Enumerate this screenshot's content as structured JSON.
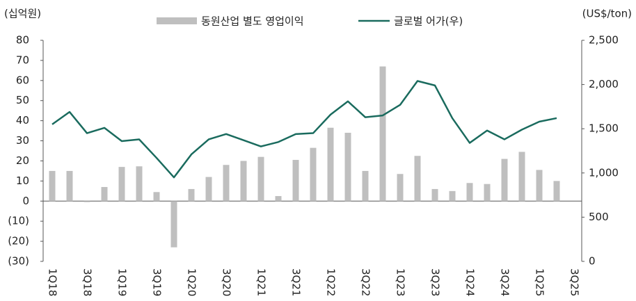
{
  "chart_data": {
    "type": "bar+line",
    "y_label": "(십억원)",
    "y2_label": "(US$/ton)",
    "categories": [
      "1Q18",
      null,
      "3Q18",
      null,
      "1Q19",
      null,
      "3Q19",
      null,
      "1Q20",
      null,
      "3Q20",
      null,
      "1Q21",
      null,
      "3Q21",
      null,
      "1Q22",
      null,
      "3Q22",
      null,
      "1Q23",
      null,
      "3Q23",
      null,
      "1Q24",
      null,
      "3Q24",
      null,
      "1Q25",
      null,
      "3Q25"
    ],
    "series": [
      {
        "name": "동원산업 별도 영업이익",
        "type": "bar",
        "axis": "y",
        "color": "#bfbfbf",
        "values": [
          15,
          15,
          -0.5,
          7,
          17,
          17.3,
          4.5,
          -23,
          6,
          12,
          18,
          20,
          22,
          2.5,
          20.5,
          26.5,
          36.5,
          34,
          15,
          67,
          13.5,
          22.5,
          6,
          5,
          9,
          8.5,
          21,
          24.5,
          15.5,
          10,
          null
        ]
      },
      {
        "name": "글로벌 어가(우)",
        "type": "line",
        "axis": "y2",
        "color": "#1a6b5e",
        "values": [
          1550,
          1690,
          1450,
          1510,
          1360,
          1380,
          1170,
          950,
          1210,
          1380,
          1440,
          1370,
          1300,
          1350,
          1440,
          1450,
          1660,
          1810,
          1630,
          1650,
          1770,
          2040,
          1990,
          1620,
          1340,
          1480,
          1380,
          1490,
          1580,
          1620,
          null
        ]
      }
    ],
    "ylim": [
      -30,
      80
    ],
    "yticks": [
      {
        "value": -30,
        "label": "(30)"
      },
      {
        "value": -20,
        "label": "(20)"
      },
      {
        "value": -10,
        "label": "(10)"
      },
      0,
      10,
      20,
      30,
      40,
      50,
      60,
      70,
      80
    ],
    "y2lim": [
      0,
      2500
    ],
    "y2ticks": [
      0,
      500,
      {
        "value": 1000,
        "label": "1,000"
      },
      {
        "value": 1500,
        "label": "1,500"
      },
      {
        "value": 2000,
        "label": "2,000"
      },
      {
        "value": 2500,
        "label": "2,500"
      }
    ],
    "grid": false,
    "legend": "top"
  }
}
